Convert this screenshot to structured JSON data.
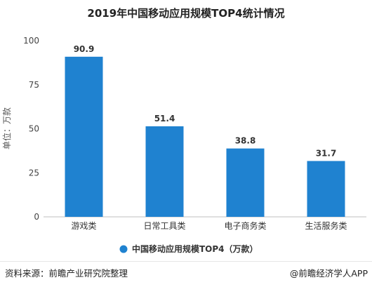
{
  "chart_data": {
    "type": "bar",
    "title": "2019年中国移动应用规模TOP4统计情况",
    "ylabel": "单位：万款",
    "categories": [
      "游戏类",
      "日常工具类",
      "电子商务类",
      "生活服务类"
    ],
    "series": [
      {
        "name": "中国移动应用规模TOP4（万款）",
        "values": [
          90.9,
          51.4,
          38.8,
          31.7
        ]
      }
    ],
    "data_labels": [
      "90.9",
      "51.4",
      "38.8",
      "31.7"
    ],
    "ylim": [
      0,
      100
    ],
    "yticks": [
      0,
      25,
      50,
      75,
      100
    ],
    "bar_color": "#1f82d0",
    "grid": false,
    "legend_position": "bottom-center"
  },
  "footer": {
    "source": "资料来源：前瞻产业研究院整理",
    "brand": "@前瞻经济学人APP"
  }
}
